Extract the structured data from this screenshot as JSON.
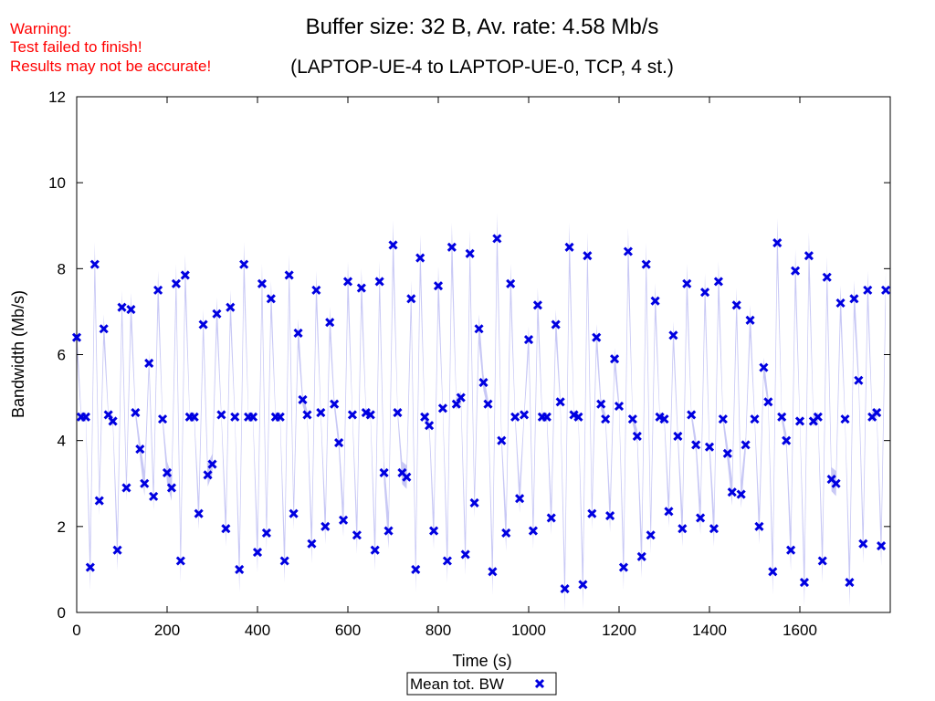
{
  "warnings": [
    "Warning:",
    "Test failed to finish!",
    "Results may not be accurate!"
  ],
  "chart_data": {
    "type": "scatter",
    "title": "Buffer size: 32 B, Av. rate: 4.58 Mb/s",
    "subtitle": "(LAPTOP-UE-4 to LAPTOP-UE-0, TCP, 4 st.)",
    "xlabel": "Time (s)",
    "ylabel": "Bandwidth (Mb/s)",
    "xlim": [
      0,
      1800
    ],
    "ylim": [
      0,
      12
    ],
    "xticks": [
      0,
      200,
      400,
      600,
      800,
      1000,
      1200,
      1400,
      1600
    ],
    "yticks": [
      0,
      2,
      4,
      6,
      8,
      10,
      12
    ],
    "grid": false,
    "legend": "bottom-center",
    "band_color": "#c8c8f5",
    "marker_color": "#0000e0",
    "series": [
      {
        "name": "Mean tot. BW",
        "x": [
          0,
          10,
          20,
          30,
          40,
          50,
          60,
          70,
          80,
          90,
          100,
          110,
          120,
          130,
          140,
          150,
          160,
          170,
          180,
          190,
          200,
          210,
          220,
          230,
          240,
          250,
          260,
          270,
          280,
          290,
          300,
          310,
          320,
          330,
          340,
          350,
          360,
          370,
          380,
          390,
          400,
          410,
          420,
          430,
          440,
          450,
          460,
          470,
          480,
          490,
          500,
          510,
          520,
          530,
          540,
          550,
          560,
          570,
          580,
          590,
          600,
          610,
          620,
          630,
          640,
          650,
          660,
          670,
          680,
          690,
          700,
          710,
          720,
          730,
          740,
          750,
          760,
          770,
          780,
          790,
          800,
          810,
          820,
          830,
          840,
          850,
          860,
          870,
          880,
          890,
          900,
          910,
          920,
          930,
          940,
          950,
          960,
          970,
          980,
          990,
          1000,
          1010,
          1020,
          1030,
          1040,
          1050,
          1060,
          1070,
          1080,
          1090,
          1100,
          1110,
          1120,
          1130,
          1140,
          1150,
          1160,
          1170,
          1180,
          1190,
          1200,
          1210,
          1220,
          1230,
          1240,
          1250,
          1260,
          1270,
          1280,
          1290,
          1300,
          1310,
          1320,
          1330,
          1340,
          1350,
          1360,
          1370,
          1380,
          1390,
          1400,
          1410,
          1420,
          1430,
          1440,
          1450,
          1460,
          1470,
          1480,
          1490,
          1500,
          1510,
          1520,
          1530,
          1540,
          1550,
          1560,
          1570,
          1580,
          1590,
          1600,
          1610,
          1620,
          1630,
          1640,
          1650,
          1660,
          1670,
          1680,
          1690,
          1700,
          1710,
          1720,
          1730,
          1740,
          1750,
          1760,
          1770,
          1780,
          1790
        ],
        "y": [
          6.4,
          4.55,
          4.55,
          1.05,
          8.1,
          2.6,
          6.6,
          4.6,
          4.45,
          1.45,
          7.1,
          2.9,
          7.05,
          4.65,
          3.8,
          3.0,
          5.8,
          2.7,
          7.5,
          4.5,
          3.25,
          2.9,
          7.65,
          1.2,
          7.85,
          4.55,
          4.55,
          2.3,
          6.7,
          3.2,
          3.45,
          6.95,
          4.6,
          1.95,
          7.1,
          4.55,
          1.0,
          8.1,
          4.55,
          4.55,
          1.4,
          7.65,
          1.85,
          7.3,
          4.55,
          4.55,
          1.2,
          7.85,
          2.3,
          6.5,
          4.95,
          4.6,
          1.6,
          7.5,
          4.65,
          2.0,
          6.75,
          4.85,
          3.95,
          2.15,
          7.7,
          4.6,
          1.8,
          7.55,
          4.65,
          4.6,
          1.45,
          7.7,
          3.25,
          1.9,
          8.55,
          4.65,
          3.25,
          3.15,
          7.3,
          1.0,
          8.25,
          4.55,
          4.35,
          1.9,
          7.6,
          4.75,
          1.2,
          8.5,
          4.85,
          5.0,
          1.35,
          8.35,
          2.55,
          6.6,
          5.35,
          4.85,
          0.95,
          8.7,
          4.0,
          1.85,
          7.65,
          4.55,
          2.65,
          4.6,
          6.35,
          1.9,
          7.15,
          4.55,
          4.55,
          2.2,
          6.7,
          4.9,
          0.55,
          8.5,
          4.6,
          4.55,
          0.65,
          8.3,
          2.3,
          6.4,
          4.85,
          4.5,
          2.25,
          5.9,
          4.8,
          1.05,
          8.4,
          4.5,
          4.1,
          1.3,
          8.1,
          1.8,
          7.25,
          4.55,
          4.5,
          2.35,
          6.45,
          4.1,
          1.95,
          7.65,
          4.6,
          3.9,
          2.2,
          7.45,
          3.85,
          1.95,
          7.7,
          4.5,
          3.7,
          2.8,
          7.15,
          2.75,
          3.9,
          6.8,
          4.5,
          2.0,
          5.7,
          4.9,
          0.95,
          8.6,
          4.55,
          4.0,
          1.45,
          7.95,
          4.45,
          0.7,
          8.3,
          4.45,
          4.55,
          1.2,
          7.8,
          3.1,
          3.0,
          7.2,
          4.5,
          0.7,
          7.3,
          5.4,
          1.6,
          7.5,
          4.55,
          4.65,
          1.55,
          7.5
        ]
      }
    ]
  }
}
